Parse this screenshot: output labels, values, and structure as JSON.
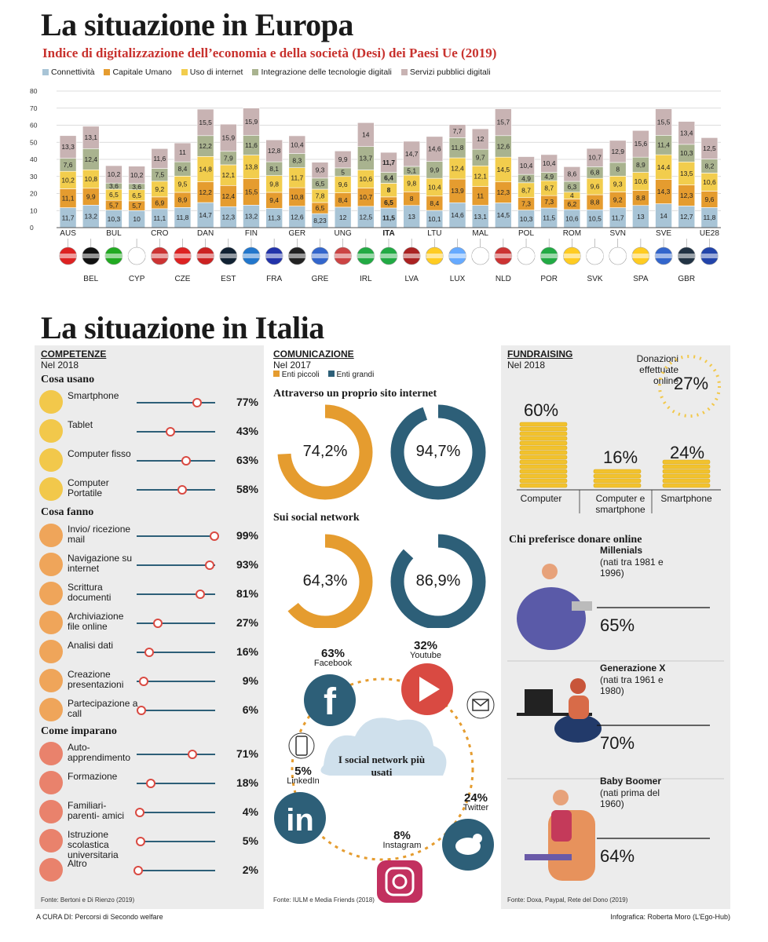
{
  "europa": {
    "title": "La situazione in Europa",
    "subtitle": "Indice di digitalizzazione dell’economia e della società (Desi) dei Paesi Ue (2019)"
  },
  "colors": {
    "connettivita": "#a8c4d6",
    "capitale_umano": "#e59c2f",
    "uso_internet": "#f2cd4d",
    "integrazione": "#a9b38f",
    "servizi": "#c8b3b3",
    "accent_red": "#c8322e",
    "teal": "#2d5f78",
    "orange": "#e59c2f"
  },
  "chart_data": {
    "type": "bar",
    "stacked": true,
    "categories": [
      "AUS",
      "BEL",
      "BUL",
      "CYP",
      "CRO",
      "CZE",
      "DAN",
      "EST",
      "FIN",
      "FRA",
      "GER",
      "GRE",
      "UNG",
      "IRL",
      "ITA",
      "LVA",
      "LTU",
      "LUX",
      "MAL",
      "NLD",
      "POL",
      "POR",
      "ROM",
      "SVK",
      "SVN",
      "SPA",
      "SVE",
      "GBR",
      "UE28"
    ],
    "highlight": "ITA",
    "series": [
      {
        "name": "Connettività",
        "values": [
          11.7,
          13.2,
          10.3,
          10,
          11.1,
          11.8,
          14.7,
          12.3,
          13.2,
          11.3,
          12.6,
          8.23,
          12,
          12.5,
          11.5,
          13,
          10.1,
          14.6,
          13.1,
          14.5,
          10.3,
          11.5,
          10.6,
          10.5,
          11.7,
          13,
          14,
          12.7,
          11.8
        ]
      },
      {
        "name": "Capitale Umano",
        "values": [
          11.1,
          9.9,
          5.7,
          5.7,
          6.9,
          8.9,
          12.2,
          12.4,
          15.5,
          9.4,
          10.8,
          6.5,
          8.4,
          10.7,
          6.5,
          8,
          8.4,
          13.9,
          11,
          12.3,
          7.3,
          7.3,
          6.2,
          8.8,
          9.2,
          8.8,
          14.3,
          12.3,
          9.6
        ]
      },
      {
        "name": "Uso di internet",
        "values": [
          10.2,
          10.8,
          6.5,
          6.5,
          9.2,
          9.5,
          14.8,
          12.1,
          13.8,
          9.8,
          11.7,
          7.8,
          9.6,
          10.6,
          8,
          9.8,
          10.4,
          12.4,
          12.1,
          14.5,
          8.7,
          8.7,
          4,
          9.6,
          9.3,
          10.6,
          14.4,
          13.5,
          10.6
        ]
      },
      {
        "name": "Integrazione delle tecnologie digitali",
        "values": [
          7.6,
          12.4,
          3.6,
          3.6,
          7.5,
          8.4,
          12.2,
          7.9,
          11.6,
          8.1,
          8.3,
          6.5,
          5,
          13.7,
          6.4,
          5.1,
          9.9,
          11.8,
          9.7,
          12.6,
          4.9,
          4.9,
          6.3,
          6.8,
          8,
          8.9,
          11.4,
          10.3,
          8.2
        ]
      },
      {
        "name": "Servizi pubblici digitali",
        "values": [
          13.3,
          13.1,
          10.2,
          10.2,
          11.6,
          11,
          15.5,
          15.9,
          15.9,
          12.8,
          10.4,
          9.3,
          9.9,
          14,
          11.7,
          14.7,
          14.6,
          7.7,
          12,
          15.7,
          10.4,
          10.4,
          8.6,
          10.7,
          12.9,
          15.6,
          15.5,
          13.4,
          12.5
        ]
      }
    ],
    "ylim": [
      0,
      80
    ],
    "yticks": [
      0,
      10,
      20,
      30,
      40,
      50,
      60,
      70,
      80
    ],
    "grid": true,
    "legend": "top-left"
  },
  "italia": {
    "title": "La situazione in Italia",
    "competenze": {
      "title": "COMPETENZE",
      "year": "Nel 2018",
      "cosa_usano": {
        "heading": "Cosa usano",
        "items": [
          {
            "label": "Smartphone",
            "pct": "77%",
            "value": 77
          },
          {
            "label": "Tablet",
            "pct": "43%",
            "value": 43
          },
          {
            "label": "Computer fisso",
            "pct": "63%",
            "value": 63
          },
          {
            "label": "Computer Portatile",
            "pct": "58%",
            "value": 58
          }
        ]
      },
      "cosa_fanno": {
        "heading": "Cosa fanno",
        "items": [
          {
            "label": "Invio/ ricezione mail",
            "pct": "99%",
            "value": 99
          },
          {
            "label": "Navigazione su internet",
            "pct": "93%",
            "value": 93
          },
          {
            "label": "Scrittura documenti",
            "pct": "81%",
            "value": 81
          },
          {
            "label": "Archiviazione file online",
            "pct": "27%",
            "value": 27
          },
          {
            "label": "Analisi dati",
            "pct": "16%",
            "value": 16
          },
          {
            "label": "Creazione presentazioni",
            "pct": "9%",
            "value": 9
          },
          {
            "label": "Partecipazione a call",
            "pct": "6%",
            "value": 6
          }
        ]
      },
      "come_imparano": {
        "heading": "Come imparano",
        "items": [
          {
            "label": "Auto- apprendimento",
            "pct": "71%",
            "value": 71
          },
          {
            "label": "Formazione",
            "pct": "18%",
            "value": 18
          },
          {
            "label": "Familiari- parenti- amici",
            "pct": "4%",
            "value": 4
          },
          {
            "label": "Istruzione scolastica universitaria",
            "pct": "5%",
            "value": 5
          },
          {
            "label": "Altro",
            "pct": "2%",
            "value": 2
          }
        ]
      },
      "source": "Fonte: Bertoni e Di Rienzo (2019)"
    },
    "comunicazione": {
      "title": "COMUNICAZIONE",
      "year": "Nel 2017",
      "legend_small": "Enti piccoli",
      "legend_large": "Enti grandi",
      "sito_heading": "Attraverso un proprio sito internet",
      "sito_small": "74,2%",
      "sito_small_value": 74.2,
      "sito_large": "94,7%",
      "sito_large_value": 94.7,
      "social_heading": "Sui social network",
      "social_small": "64,3%",
      "social_small_value": 64.3,
      "social_large": "86,9%",
      "social_large_value": 86.9,
      "cloud": "I social network più usati",
      "networks": [
        {
          "name": "Facebook",
          "pct": "63%"
        },
        {
          "name": "Youtube",
          "pct": "32%"
        },
        {
          "name": "LinkedIn",
          "pct": "5%"
        },
        {
          "name": "Twitter",
          "pct": "24%"
        },
        {
          "name": "Instagram",
          "pct": "8%"
        }
      ],
      "source": "Fonte: IULM e Media Friends (2018)"
    },
    "fundraising": {
      "title": "FUNDRAISING",
      "year": "Nel 2018",
      "donazioni_label": "Donazioni effettuate online",
      "donazioni_pct": "27%",
      "devices": [
        {
          "label": "Computer",
          "pct": "60%",
          "value": 60
        },
        {
          "label": "Computer e smartphone",
          "pct": "16%",
          "value": 16
        },
        {
          "label": "Smartphone",
          "pct": "24%",
          "value": 24
        }
      ],
      "chi_heading": "Chi preferisce donare online",
      "generations": [
        {
          "name": "Millenials",
          "desc": "(nati tra 1981 e 1996)",
          "pct": "65%"
        },
        {
          "name": "Generazione X",
          "desc": "(nati tra 1961 e 1980)",
          "pct": "70%"
        },
        {
          "name": "Baby Boomer",
          "desc": "(nati prima del 1960)",
          "pct": "64%"
        }
      ],
      "source": "Fonte: Doxa, Paypal, Rete del Dono (2019)"
    },
    "credits_left": "A CURA DI: Percorsi di Secondo welfare",
    "credits_right": "Infografica: Roberta Moro (L’Ego-Hub)"
  }
}
